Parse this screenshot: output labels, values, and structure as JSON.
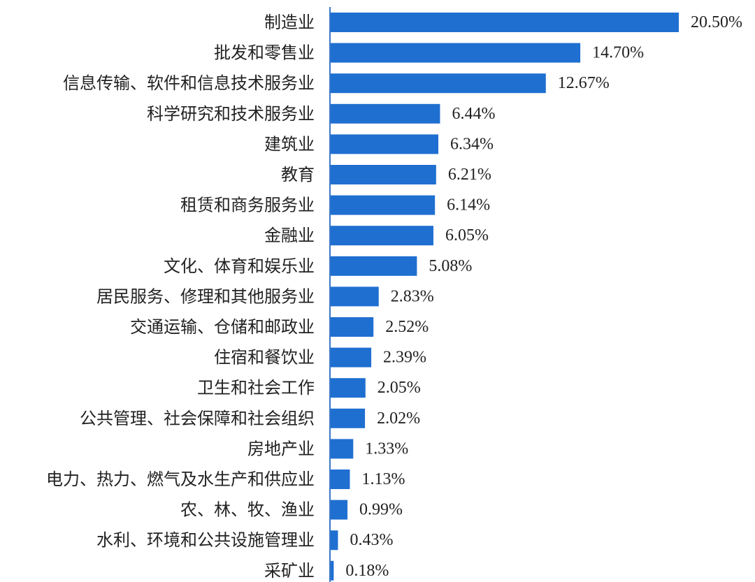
{
  "chart_data": {
    "type": "bar",
    "orientation": "horizontal",
    "title": "",
    "xlabel": "",
    "ylabel": "",
    "categories": [
      "制造业",
      "批发和零售业",
      "信息传输、软件和信息技术服务业",
      "科学研究和技术服务业",
      "建筑业",
      "教育",
      "租赁和商务服务业",
      "金融业",
      "文化、体育和娱乐业",
      "居民服务、修理和其他服务业",
      "交通运输、仓储和邮政业",
      "住宿和餐饮业",
      "卫生和社会工作",
      "公共管理、社会保障和社会组织",
      "房地产业",
      "电力、热力、燃气及水生产和供应业",
      "农、林、牧、渔业",
      "水利、环境和公共设施管理业",
      "采矿业"
    ],
    "values": [
      20.5,
      14.7,
      12.67,
      6.44,
      6.34,
      6.21,
      6.14,
      6.05,
      5.08,
      2.83,
      2.52,
      2.39,
      2.05,
      2.02,
      1.33,
      1.13,
      0.99,
      0.43,
      0.18
    ],
    "value_labels": [
      "20.50%",
      "14.70%",
      "12.67%",
      "6.44%",
      "6.34%",
      "6.21%",
      "6.14%",
      "6.05%",
      "5.08%",
      "2.83%",
      "2.52%",
      "2.39%",
      "2.05%",
      "2.02%",
      "1.33%",
      "1.13%",
      "0.99%",
      "0.43%",
      "0.18%"
    ],
    "unit": "%",
    "xlim": [
      0,
      20.5
    ],
    "grid": false,
    "legend": "none",
    "colors": {
      "bar": "#1f6fd1",
      "axis": "#3a78c6",
      "text": "#222222"
    }
  }
}
